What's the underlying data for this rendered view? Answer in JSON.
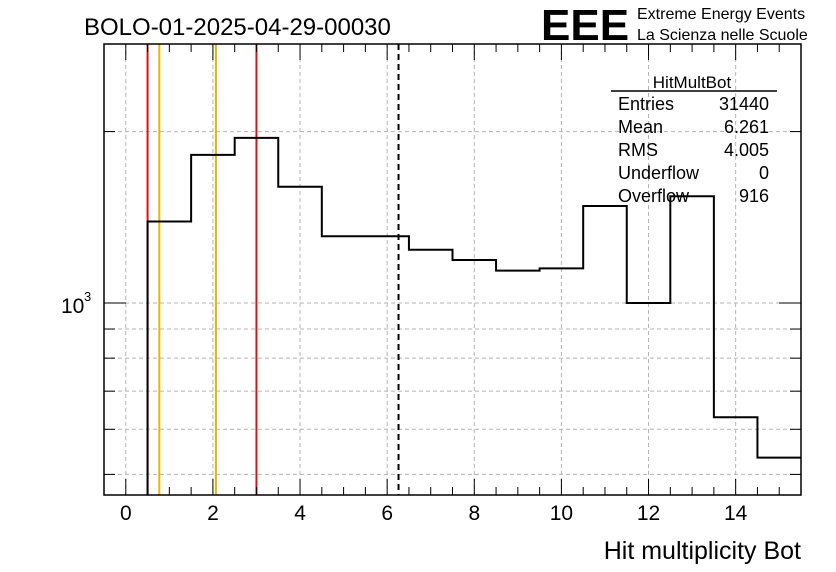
{
  "title": "BOLO-01-2025-04-29-00030",
  "logo": {
    "mark": "EEE",
    "line1": "Extreme Energy Events",
    "line2": "La Scienza nelle Scuole",
    "color": "#1414e6"
  },
  "stats": {
    "name": "HitMultBot",
    "rows": [
      {
        "label": "Entries",
        "value": "31440"
      },
      {
        "label": "Mean",
        "value": "6.261"
      },
      {
        "label": "RMS",
        "value": "4.005"
      },
      {
        "label": "Underflow",
        "value": "0"
      },
      {
        "label": "Overflow",
        "value": "916"
      }
    ]
  },
  "chart_data": {
    "type": "histogram",
    "title": "BOLO-01-2025-04-29-00030",
    "xlabel": "Hit multiplicity Bot",
    "ylabel": "",
    "xlim": [
      -0.5,
      15.5
    ],
    "ylim": [
      460,
      2850
    ],
    "yscale": "log",
    "grid": true,
    "x_ticks": [
      0,
      2,
      4,
      6,
      8,
      10,
      12,
      14
    ],
    "x_tick_labels": [
      "0",
      "2",
      "4",
      "6",
      "8",
      "10",
      "12",
      "14"
    ],
    "y_major_label": {
      "base": "10",
      "exponent": "3",
      "value": 1000
    },
    "bins": [
      {
        "low": 0.5,
        "high": 1.5,
        "count": 1390
      },
      {
        "low": 1.5,
        "high": 2.5,
        "count": 1820
      },
      {
        "low": 2.5,
        "high": 3.5,
        "count": 1950
      },
      {
        "low": 3.5,
        "high": 4.5,
        "count": 1600
      },
      {
        "low": 4.5,
        "high": 5.5,
        "count": 1310
      },
      {
        "low": 5.5,
        "high": 6.5,
        "count": 1310
      },
      {
        "low": 6.5,
        "high": 7.5,
        "count": 1240
      },
      {
        "low": 7.5,
        "high": 8.5,
        "count": 1190
      },
      {
        "low": 8.5,
        "high": 9.5,
        "count": 1140
      },
      {
        "low": 9.5,
        "high": 10.5,
        "count": 1150
      },
      {
        "low": 10.5,
        "high": 11.5,
        "count": 1480
      },
      {
        "low": 11.5,
        "high": 12.5,
        "count": 1000
      },
      {
        "low": 12.5,
        "high": 13.5,
        "count": 1540
      },
      {
        "low": 13.5,
        "high": 14.5,
        "count": 630
      },
      {
        "low": 14.5,
        "high": 15.5,
        "count": 535
      }
    ],
    "vertical_lines": [
      {
        "x": 0.5,
        "color": "#e01010",
        "style": "solid"
      },
      {
        "x": 0.77,
        "color": "#f0b400",
        "style": "solid"
      },
      {
        "x": 2.07,
        "color": "#f0b400",
        "style": "solid"
      },
      {
        "x": 3.0,
        "color": "#e01010",
        "style": "solid"
      },
      {
        "x": 6.261,
        "color": "#000000",
        "style": "dashed"
      }
    ]
  }
}
